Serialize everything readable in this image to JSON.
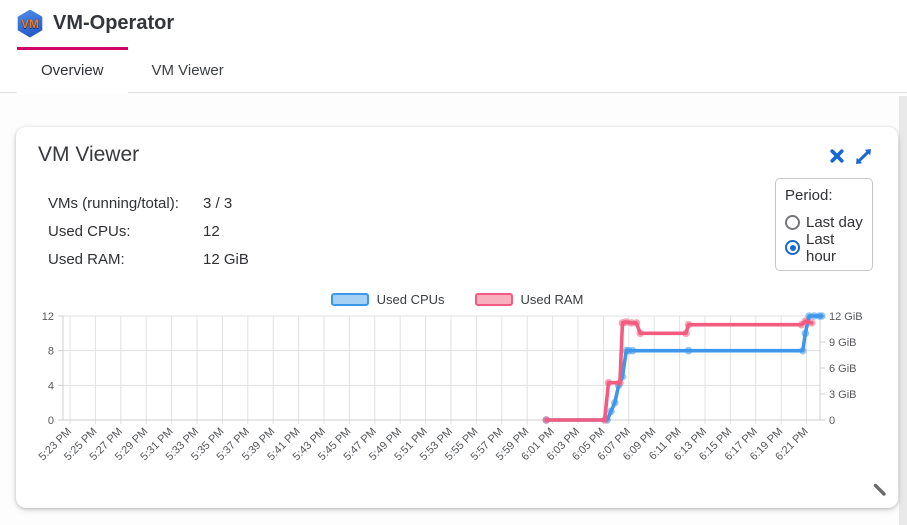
{
  "header": {
    "title": "VM-Operator",
    "logo_text": "VM"
  },
  "tabs": [
    {
      "label": "Overview",
      "active": true
    },
    {
      "label": "VM Viewer",
      "active": false
    }
  ],
  "card": {
    "title": "VM Viewer",
    "stats": [
      {
        "label": "VMs (running/total):",
        "value": "3 / 3"
      },
      {
        "label": "Used CPUs:",
        "value": "12"
      },
      {
        "label": "Used RAM:",
        "value": "12 GiB"
      }
    ],
    "period": {
      "label": "Period:",
      "options": [
        {
          "label": "Last day",
          "selected": false
        },
        {
          "label": "Last hour",
          "selected": true
        }
      ]
    }
  },
  "colors": {
    "accent_pink": "#d0006a",
    "icon_blue": "#1668d6",
    "cpu_line": "#3e97e8",
    "cpu_fill": "#a7d1f4",
    "ram_line": "#f25c80",
    "ram_fill": "#f8afbe",
    "grid": "#e1e1e1",
    "axis": "#cfcfcf",
    "axis_text": "#55585c"
  },
  "chart_data": {
    "type": "line",
    "title": "",
    "legend_position": "top-center",
    "grid": true,
    "x_labels": [
      "5:23 PM",
      "5:25 PM",
      "5:27 PM",
      "5:29 PM",
      "5:31 PM",
      "5:33 PM",
      "5:35 PM",
      "5:37 PM",
      "5:39 PM",
      "5:41 PM",
      "5:43 PM",
      "5:45 PM",
      "5:47 PM",
      "5:49 PM",
      "5:51 PM",
      "5:53 PM",
      "5:55 PM",
      "5:57 PM",
      "5:59 PM",
      "6:01 PM",
      "6:03 PM",
      "6:05 PM",
      "6:07 PM",
      "6:09 PM",
      "6:11 PM",
      "6:13 PM",
      "6:15 PM",
      "6:17 PM",
      "6:19 PM",
      "6:21 PM"
    ],
    "x_interval_minutes": 2,
    "y_left": {
      "ticks": [
        0,
        4,
        8,
        12
      ],
      "range": [
        0,
        12
      ],
      "series": "Used CPUs"
    },
    "y_right": {
      "tick_labels": [
        "0",
        "3 GiB",
        "6 GiB",
        "9 GiB",
        "12 GiB"
      ],
      "tick_values": [
        0,
        3,
        6,
        9,
        12
      ],
      "range": [
        0,
        12
      ],
      "series": "Used RAM"
    },
    "series": [
      {
        "name": "Used CPUs",
        "axis": "left",
        "unit": "CPUs",
        "points_minutes_after_start": [
          [
            37.5,
            0
          ],
          [
            42.3,
            0
          ],
          [
            42.6,
            1
          ],
          [
            42.9,
            2
          ],
          [
            43.2,
            4
          ],
          [
            43.5,
            5
          ],
          [
            43.8,
            8
          ],
          [
            44.0,
            8
          ],
          [
            44.3,
            8
          ],
          [
            48.7,
            8
          ],
          [
            57.7,
            8
          ],
          [
            57.9,
            10
          ],
          [
            58.2,
            12
          ],
          [
            58.6,
            12
          ],
          [
            59.0,
            12
          ],
          [
            59.2,
            12
          ]
        ]
      },
      {
        "name": "Used RAM",
        "axis": "right",
        "unit": "GiB",
        "points_minutes_after_start": [
          [
            37.5,
            0
          ],
          [
            42.1,
            0
          ],
          [
            42.4,
            4.3
          ],
          [
            43.3,
            4.3
          ],
          [
            43.5,
            11.2
          ],
          [
            43.8,
            11.3
          ],
          [
            44.2,
            11.2
          ],
          [
            44.6,
            11.2
          ],
          [
            44.9,
            10
          ],
          [
            48.5,
            10
          ],
          [
            48.7,
            11
          ],
          [
            57.6,
            11
          ],
          [
            57.9,
            11.4
          ],
          [
            58.4,
            11.2
          ]
        ]
      }
    ]
  }
}
